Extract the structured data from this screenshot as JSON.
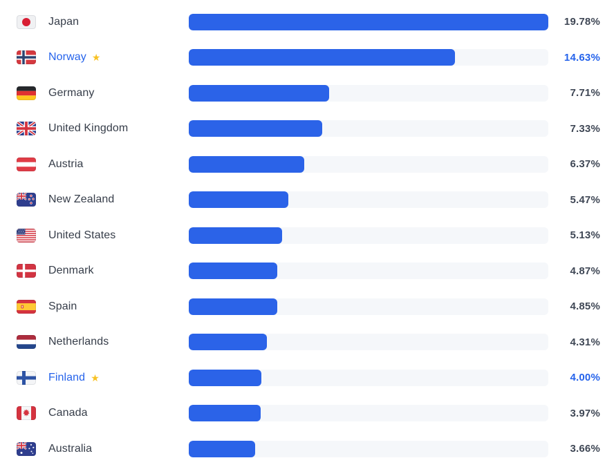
{
  "chart_data": {
    "type": "bar",
    "orientation": "horizontal",
    "value_unit": "%",
    "xlim": [
      0,
      19.78
    ],
    "grid": false,
    "legend": false,
    "rows": [
      {
        "country": "Japan",
        "flag_icon": "flag-japan",
        "value": 19.78,
        "value_label": "19.78%",
        "highlighted": false,
        "starred": false
      },
      {
        "country": "Norway",
        "flag_icon": "flag-norway",
        "value": 14.63,
        "value_label": "14.63%",
        "highlighted": true,
        "starred": true
      },
      {
        "country": "Germany",
        "flag_icon": "flag-germany",
        "value": 7.71,
        "value_label": "7.71%",
        "highlighted": false,
        "starred": false
      },
      {
        "country": "United Kingdom",
        "flag_icon": "flag-united-kingdom",
        "value": 7.33,
        "value_label": "7.33%",
        "highlighted": false,
        "starred": false
      },
      {
        "country": "Austria",
        "flag_icon": "flag-austria",
        "value": 6.37,
        "value_label": "6.37%",
        "highlighted": false,
        "starred": false
      },
      {
        "country": "New Zealand",
        "flag_icon": "flag-new-zealand",
        "value": 5.47,
        "value_label": "5.47%",
        "highlighted": false,
        "starred": false
      },
      {
        "country": "United States",
        "flag_icon": "flag-united-states",
        "value": 5.13,
        "value_label": "5.13%",
        "highlighted": false,
        "starred": false
      },
      {
        "country": "Denmark",
        "flag_icon": "flag-denmark",
        "value": 4.87,
        "value_label": "4.87%",
        "highlighted": false,
        "starred": false
      },
      {
        "country": "Spain",
        "flag_icon": "flag-spain",
        "value": 4.85,
        "value_label": "4.85%",
        "highlighted": false,
        "starred": false
      },
      {
        "country": "Netherlands",
        "flag_icon": "flag-netherlands",
        "value": 4.31,
        "value_label": "4.31%",
        "highlighted": false,
        "starred": false
      },
      {
        "country": "Finland",
        "flag_icon": "flag-finland",
        "value": 4.0,
        "value_label": "4.00%",
        "highlighted": true,
        "starred": true
      },
      {
        "country": "Canada",
        "flag_icon": "flag-canada",
        "value": 3.97,
        "value_label": "3.97%",
        "highlighted": false,
        "starred": false
      },
      {
        "country": "Australia",
        "flag_icon": "flag-australia",
        "value": 3.66,
        "value_label": "3.66%",
        "highlighted": false,
        "starred": false
      }
    ]
  },
  "icons": {
    "star": {
      "name": "star-icon",
      "glyph": "★"
    }
  },
  "colors": {
    "bar": "#2b63e8",
    "track": "#f5f7fa",
    "country_text": "#363d49",
    "value_text": "#3f4755",
    "highlight_text": "#2563eb",
    "star": "#f8c224",
    "background": "#ffffff"
  }
}
